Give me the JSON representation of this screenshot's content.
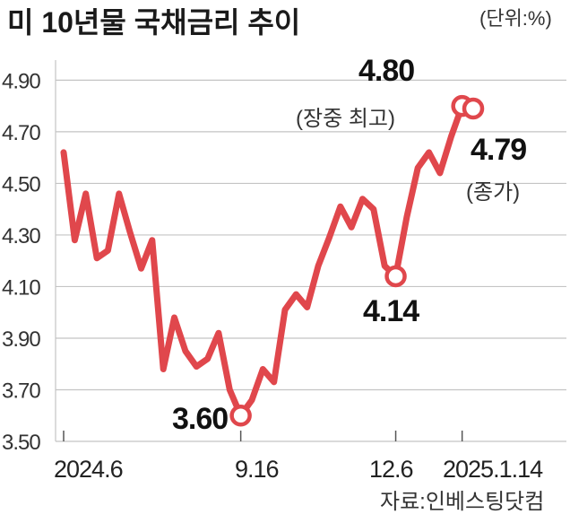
{
  "chart_data": {
    "type": "line",
    "title": "미 10년물 국채금리 추이",
    "unit_label": "(단위:%)",
    "source": "자료:인베스팅닷컴",
    "ylim": [
      3.5,
      4.95
    ],
    "yticks": [
      "4.90",
      "4.70",
      "4.50",
      "4.30",
      "4.10",
      "3.90",
      "3.70",
      "3.50"
    ],
    "xlabels": [
      "2024.6",
      "9.16",
      "12.6",
      "2025.1.14"
    ],
    "line_color": "#e0474c",
    "grid": true,
    "series": [
      {
        "values": [
          4.62,
          4.28,
          4.46,
          4.21,
          4.24,
          4.46,
          4.31,
          4.17,
          4.28,
          3.78,
          3.98,
          3.85,
          3.79,
          3.82,
          3.92,
          3.7,
          3.6,
          3.66,
          3.78,
          3.73,
          4.01,
          4.07,
          4.02,
          4.18,
          4.29,
          4.41,
          4.33,
          4.44,
          4.4,
          4.18,
          4.14,
          4.37,
          4.56,
          4.62,
          4.54,
          4.68,
          4.8,
          4.79
        ]
      }
    ],
    "annotations": [
      {
        "value": "4.80",
        "note": "(장중 최고)"
      },
      {
        "value": "4.79",
        "note": "(종가)"
      },
      {
        "value": "3.60"
      },
      {
        "value": "4.14"
      }
    ]
  }
}
